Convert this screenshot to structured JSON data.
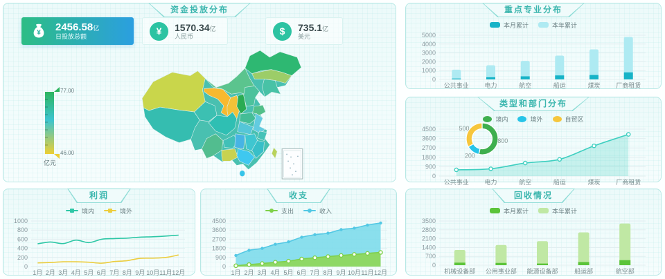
{
  "palette": {
    "panel_border": "#b7e8e5",
    "title_text": "#3bb6ae",
    "grid_line": "#e2eef0",
    "tick_text": "#8a9aa0",
    "card_gradient": [
      "#2dbd85",
      "#2b9fe0"
    ],
    "accent_teal": "#2cc3a2",
    "visualmap_gradient": [
      "#2db55f",
      "#3cc4cf",
      "#eccf35"
    ]
  },
  "panels": {
    "fund": {
      "title": "资金投放分布",
      "cards": [
        {
          "icon": "money-bag",
          "value": "2456.58",
          "unit": "亿",
          "label": "日投放总额"
        },
        {
          "icon": "yen-circle",
          "symbol": "¥",
          "value": "1570.34",
          "unit": "亿",
          "label": "人民币"
        },
        {
          "icon": "dollar-circle",
          "symbol": "$",
          "value": "735.1",
          "unit": "亿",
          "label": "美元"
        }
      ],
      "visualmap": {
        "max": "77.00",
        "min": "46.00",
        "unit": "亿元"
      }
    },
    "key": {
      "title": "重点专业分布"
    },
    "type": {
      "title": "类型和部门分布"
    },
    "profit": {
      "title": "利润"
    },
    "balance": {
      "title": "收支"
    },
    "recovery": {
      "title": "回收情况"
    }
  },
  "chart_data": [
    {
      "id": "key_distribution",
      "type": "bar",
      "title": "重点专业分布",
      "categories": [
        "公共事业",
        "电力",
        "航空",
        "船运",
        "煤炭",
        "厂商租赁"
      ],
      "series": [
        {
          "name": "本月累计",
          "values": [
            100,
            250,
            350,
            450,
            500,
            800
          ],
          "color": "#17b3c7"
        },
        {
          "name": "本年累计",
          "values": [
            1100,
            1600,
            2100,
            2700,
            3400,
            4800
          ],
          "color": "#aeeaf2"
        }
      ],
      "ylim": [
        0,
        5000
      ],
      "ytick_step": 1000,
      "grid": true,
      "legend_position": "top"
    },
    {
      "id": "type_donut",
      "type": "pie",
      "title": "类型和部门分布",
      "series": [
        {
          "name": "境内",
          "value": 800,
          "color": "#3faf4e"
        },
        {
          "name": "境外",
          "value": 200,
          "color": "#27c4e8"
        },
        {
          "name": "自贸区",
          "value": 500,
          "color": "#f6c63c"
        }
      ]
    },
    {
      "id": "type_area",
      "type": "area",
      "categories": [
        "公共事业",
        "电力",
        "航空",
        "船运",
        "煤炭",
        "厂商租赁"
      ],
      "series": [
        {
          "name": "部门",
          "values": [
            600,
            700,
            1250,
            1600,
            2900,
            4000
          ],
          "color": "#3ecfc0",
          "fill": "rgba(62,207,192,0.25)",
          "marker": "ring"
        }
      ],
      "ylim": [
        0,
        4500
      ],
      "ytick_step": 900,
      "grid": true
    },
    {
      "id": "profit",
      "type": "line",
      "title": "利润",
      "categories": [
        "1月",
        "2月",
        "3月",
        "4月",
        "5月",
        "6月",
        "7月",
        "8月",
        "9月",
        "10月",
        "11月",
        "12月"
      ],
      "series": [
        {
          "name": "境内",
          "values": [
            500,
            540,
            505,
            580,
            525,
            600,
            615,
            625,
            645,
            655,
            670,
            690
          ],
          "color": "#2ec7a6"
        },
        {
          "name": "境外",
          "values": [
            80,
            90,
            105,
            105,
            95,
            75,
            110,
            130,
            180,
            185,
            200,
            255
          ],
          "color": "#eccd3e"
        }
      ],
      "ylim": [
        0,
        1000
      ],
      "ytick_step": 200,
      "grid": true,
      "legend_position": "top"
    },
    {
      "id": "balance",
      "type": "area",
      "title": "收支",
      "categories": [
        "1月",
        "2月",
        "3月",
        "4月",
        "5月",
        "6月",
        "7月",
        "8月",
        "9月",
        "10月",
        "11月",
        "12月"
      ],
      "series": [
        {
          "name": "收入",
          "values": [
            1100,
            1600,
            1800,
            2200,
            2450,
            2900,
            3150,
            3300,
            3650,
            3800,
            4100,
            4300
          ],
          "color": "#53c8e4",
          "fill": "rgba(126,219,235,0.9)",
          "marker": "dot"
        },
        {
          "name": "支出",
          "values": [
            80,
            200,
            300,
            430,
            530,
            750,
            870,
            990,
            1100,
            1200,
            1300,
            1400
          ],
          "color": "#7ed048",
          "fill": "rgba(142,215,94,0.95)",
          "marker": "ring"
        }
      ],
      "legend_order": [
        "支出",
        "收入"
      ],
      "ylim": [
        0,
        4500
      ],
      "ytick_step": 900,
      "grid": true,
      "legend_position": "top"
    },
    {
      "id": "recovery",
      "type": "bar",
      "title": "回收情况",
      "categories": [
        "机械设备部",
        "公用事业部",
        "能源设备部",
        "船运部",
        "航空部"
      ],
      "series": [
        {
          "name": "本月累计",
          "values": [
            200,
            180,
            130,
            250,
            400
          ],
          "color": "#5cc43a"
        },
        {
          "name": "本年累计",
          "values": [
            1200,
            1600,
            1900,
            2600,
            3300
          ],
          "color": "#c0e8a4"
        }
      ],
      "ylim": [
        0,
        3500
      ],
      "ytick_step": 700,
      "grid": true,
      "legend_position": "top"
    }
  ]
}
